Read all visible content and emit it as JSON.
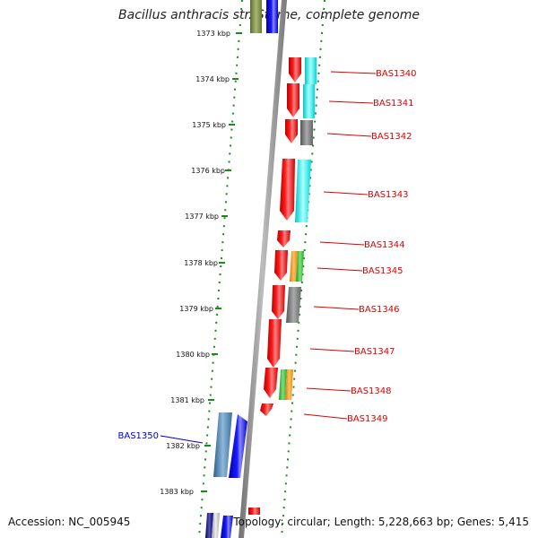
{
  "title": "Bacillus anthracis str. Sterne, complete genome",
  "accession": "Accession: NC_005945",
  "summary": "Topology: circular; Length: 5,228,663 bp; Genes: 5,415",
  "colors": {
    "label_red": "#dd0000",
    "label_blue": "#0000cc",
    "dot_green": "#1a8a1a",
    "backbone": "#8c8c8c"
  },
  "kbp_ticks": [
    "1373 kbp",
    "1374 kbp",
    "1375 kbp",
    "1376 kbp",
    "1377 kbp",
    "1378 kbp",
    "1379 kbp",
    "1380 kbp",
    "1381 kbp",
    "1382 kbp",
    "1383 kbp"
  ],
  "gene_labels": [
    {
      "text": "BAS1340",
      "color": "#dd0000"
    },
    {
      "text": "BAS1341",
      "color": "#dd0000"
    },
    {
      "text": "BAS1342",
      "color": "#dd0000"
    },
    {
      "text": "BAS1343",
      "color": "#dd0000"
    },
    {
      "text": "BAS1344",
      "color": "#dd0000"
    },
    {
      "text": "BAS1345",
      "color": "#dd0000"
    },
    {
      "text": "BAS1346",
      "color": "#dd0000"
    },
    {
      "text": "BAS1347",
      "color": "#dd0000"
    },
    {
      "text": "BAS1348",
      "color": "#dd0000"
    },
    {
      "text": "BAS1349",
      "color": "#dd0000"
    },
    {
      "text": "BAS1350",
      "color": "#0000cc"
    }
  ]
}
